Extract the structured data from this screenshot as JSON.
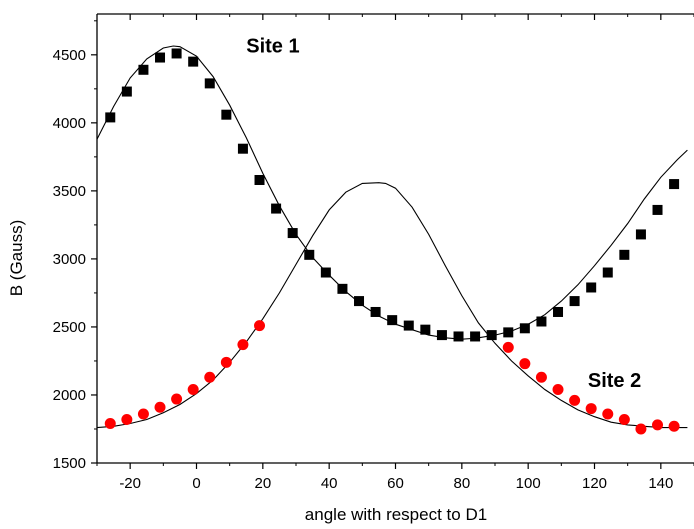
{
  "chart_data": {
    "type": "scatter",
    "xlabel": "angle with respect to D1",
    "ylabel": "B (Gauss)",
    "xlim": [
      -30,
      150
    ],
    "ylim": [
      1500,
      4800
    ],
    "x_ticks": [
      -20,
      0,
      20,
      40,
      60,
      80,
      100,
      120,
      140
    ],
    "y_ticks": [
      1500,
      2000,
      2500,
      3000,
      3500,
      4000,
      4500
    ],
    "x_tick_labels": [
      "-20",
      "0",
      "20",
      "40",
      "60",
      "80",
      "100",
      "120",
      "140"
    ],
    "y_tick_labels": [
      "1500",
      "2000",
      "2500",
      "3000",
      "3500",
      "4000",
      "4500"
    ],
    "grid": false,
    "legend": "none",
    "annotations": [
      {
        "text": "Site 1",
        "x": 15,
        "y": 4570
      },
      {
        "text": "Site 2",
        "x": 118,
        "y": 2110
      }
    ],
    "series": [
      {
        "kind": "points",
        "marker": "square",
        "color": "#000000",
        "x": [
          -26,
          -21,
          -16,
          -11,
          -6,
          -1,
          4,
          9,
          14,
          19,
          24,
          29,
          34,
          39,
          44,
          49,
          54,
          59,
          64,
          69,
          74,
          79,
          84,
          89,
          94,
          99,
          104,
          109,
          114,
          119,
          124,
          129,
          134,
          139,
          144
        ],
        "y": [
          4040,
          4230,
          4390,
          4480,
          4510,
          4450,
          4290,
          4060,
          3810,
          3580,
          3370,
          3190,
          3030,
          2900,
          2780,
          2690,
          2610,
          2550,
          2510,
          2480,
          2440,
          2430,
          2430,
          2440,
          2460,
          2490,
          2540,
          2610,
          2690,
          2790,
          2900,
          3030,
          3180,
          3360,
          3550
        ]
      },
      {
        "kind": "points",
        "marker": "circle",
        "color": "#ff0000",
        "x": [
          -26,
          -21,
          -16,
          -11,
          -6,
          -1,
          4,
          9,
          14,
          19,
          94,
          99,
          104,
          109,
          114,
          119,
          124,
          129,
          134,
          139,
          144
        ],
        "y": [
          1790,
          1820,
          1860,
          1910,
          1970,
          2040,
          2130,
          2240,
          2370,
          2510,
          2350,
          2230,
          2130,
          2040,
          1960,
          1900,
          1860,
          1820,
          1750,
          1780,
          1770
        ]
      },
      {
        "kind": "curve",
        "color": "#000000",
        "x": [
          -30,
          -25,
          -20,
          -15,
          -10,
          -7,
          -5,
          0,
          5,
          10,
          15,
          20,
          25,
          30,
          35,
          40,
          45,
          50,
          55,
          60,
          65,
          70,
          75,
          80,
          83,
          85,
          90,
          95,
          100,
          105,
          110,
          115,
          120,
          125,
          130,
          135,
          140,
          145,
          148
        ],
        "y": [
          3880,
          4120,
          4330,
          4470,
          4550,
          4565,
          4560,
          4490,
          4340,
          4130,
          3890,
          3630,
          3390,
          3180,
          3010,
          2880,
          2760,
          2660,
          2580,
          2520,
          2480,
          2440,
          2420,
          2410,
          2415,
          2420,
          2440,
          2470,
          2520,
          2590,
          2690,
          2810,
          2950,
          3100,
          3260,
          3440,
          3600,
          3730,
          3800
        ]
      },
      {
        "kind": "curve",
        "color": "#000000",
        "x": [
          -30,
          -25,
          -20,
          -15,
          -10,
          -5,
          0,
          5,
          10,
          15,
          20,
          25,
          30,
          35,
          40,
          45,
          50,
          55,
          57,
          60,
          65,
          70,
          75,
          80,
          85,
          90,
          95,
          100,
          105,
          110,
          115,
          120,
          125,
          130,
          135,
          140,
          145,
          148
        ],
        "y": [
          1760,
          1770,
          1790,
          1820,
          1870,
          1930,
          2010,
          2110,
          2240,
          2390,
          2560,
          2750,
          2960,
          3170,
          3360,
          3490,
          3555,
          3560,
          3555,
          3520,
          3380,
          3180,
          2950,
          2730,
          2530,
          2380,
          2250,
          2140,
          2040,
          1960,
          1890,
          1840,
          1800,
          1780,
          1770,
          1760,
          1760,
          1760
        ]
      }
    ]
  }
}
